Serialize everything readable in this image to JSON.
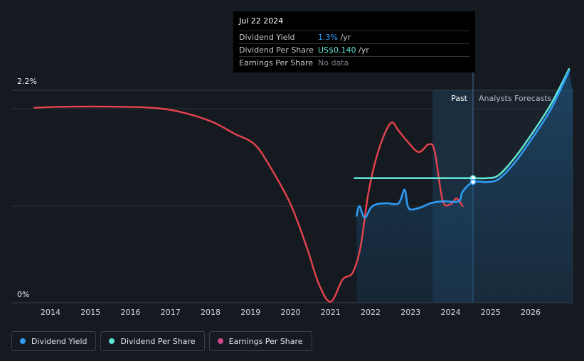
{
  "chart_data": {
    "type": "line",
    "x_ticks": [
      "2014",
      "2015",
      "2016",
      "2017",
      "2018",
      "2019",
      "2020",
      "2021",
      "2022",
      "2023",
      "2024",
      "2025",
      "2026"
    ],
    "y_axis": {
      "min_label": "0%",
      "max_label": "2.2%",
      "min": 0,
      "max": 2.2
    },
    "zones": {
      "past_label": "Past",
      "forecast_label": "Analysts Forecasts"
    },
    "series": [
      {
        "name": "Dividend Yield",
        "color": "#2f9cf4",
        "points": [
          [
            2021.65,
            0.9
          ],
          [
            2021.72,
            1.0
          ],
          [
            2021.85,
            0.88
          ],
          [
            2022.0,
            0.98
          ],
          [
            2022.15,
            1.02
          ],
          [
            2022.4,
            1.03
          ],
          [
            2022.7,
            1.03
          ],
          [
            2022.85,
            1.17
          ],
          [
            2022.95,
            0.98
          ],
          [
            2023.2,
            0.98
          ],
          [
            2023.5,
            1.03
          ],
          [
            2023.8,
            1.05
          ],
          [
            2024.2,
            1.05
          ],
          [
            2024.3,
            1.15
          ],
          [
            2024.56,
            1.25
          ],
          [
            2024.9,
            1.25
          ],
          [
            2025.2,
            1.28
          ],
          [
            2025.6,
            1.45
          ],
          [
            2026.0,
            1.68
          ],
          [
            2026.5,
            2.0
          ],
          [
            2026.96,
            2.4
          ]
        ]
      },
      {
        "name": "Dividend Per Share",
        "color": "#5fe3d4",
        "points": [
          [
            2021.6,
            1.29
          ],
          [
            2022.5,
            1.29
          ],
          [
            2023.5,
            1.29
          ],
          [
            2024.56,
            1.29
          ],
          [
            2024.9,
            1.29
          ],
          [
            2025.2,
            1.32
          ],
          [
            2025.6,
            1.5
          ],
          [
            2026.0,
            1.73
          ],
          [
            2026.5,
            2.05
          ],
          [
            2026.96,
            2.42
          ]
        ]
      },
      {
        "name": "Earnings Per Share",
        "color": "#e5434d",
        "points": [
          [
            2013.6,
            2.02
          ],
          [
            2014.5,
            2.03
          ],
          [
            2015.5,
            2.03
          ],
          [
            2016.5,
            2.02
          ],
          [
            2017.2,
            1.98
          ],
          [
            2018.0,
            1.88
          ],
          [
            2018.6,
            1.75
          ],
          [
            2019.1,
            1.64
          ],
          [
            2019.5,
            1.4
          ],
          [
            2020.0,
            1.02
          ],
          [
            2020.4,
            0.58
          ],
          [
            2020.7,
            0.2
          ],
          [
            2021.0,
            0.01
          ],
          [
            2021.3,
            0.24
          ],
          [
            2021.55,
            0.31
          ],
          [
            2021.75,
            0.58
          ],
          [
            2021.95,
            1.15
          ],
          [
            2022.2,
            1.58
          ],
          [
            2022.5,
            1.86
          ],
          [
            2022.7,
            1.78
          ],
          [
            2022.9,
            1.68
          ],
          [
            2023.2,
            1.56
          ],
          [
            2023.45,
            1.64
          ],
          [
            2023.6,
            1.57
          ],
          [
            2023.8,
            1.06
          ],
          [
            2024.0,
            1.02
          ],
          [
            2024.15,
            1.08
          ],
          [
            2024.3,
            1.0
          ]
        ]
      }
    ],
    "highlight_x": 2024.56,
    "forecast_start_x": 2023.55
  },
  "tooltip": {
    "date": "Jul 22 2024",
    "rows": [
      {
        "label": "Dividend Yield",
        "value": "1.3%",
        "unit": " /yr"
      },
      {
        "label": "Dividend Per Share",
        "value": "US$0.140",
        "unit": " /yr"
      },
      {
        "label": "Earnings Per Share",
        "value": "No data",
        "unit": ""
      }
    ]
  },
  "legend": [
    {
      "label": "Dividend Yield",
      "color": "#2f9cf4"
    },
    {
      "label": "Dividend Per Share",
      "color": "#5fe3d4"
    },
    {
      "label": "Earnings Per Share",
      "color": "#d0488a"
    }
  ]
}
